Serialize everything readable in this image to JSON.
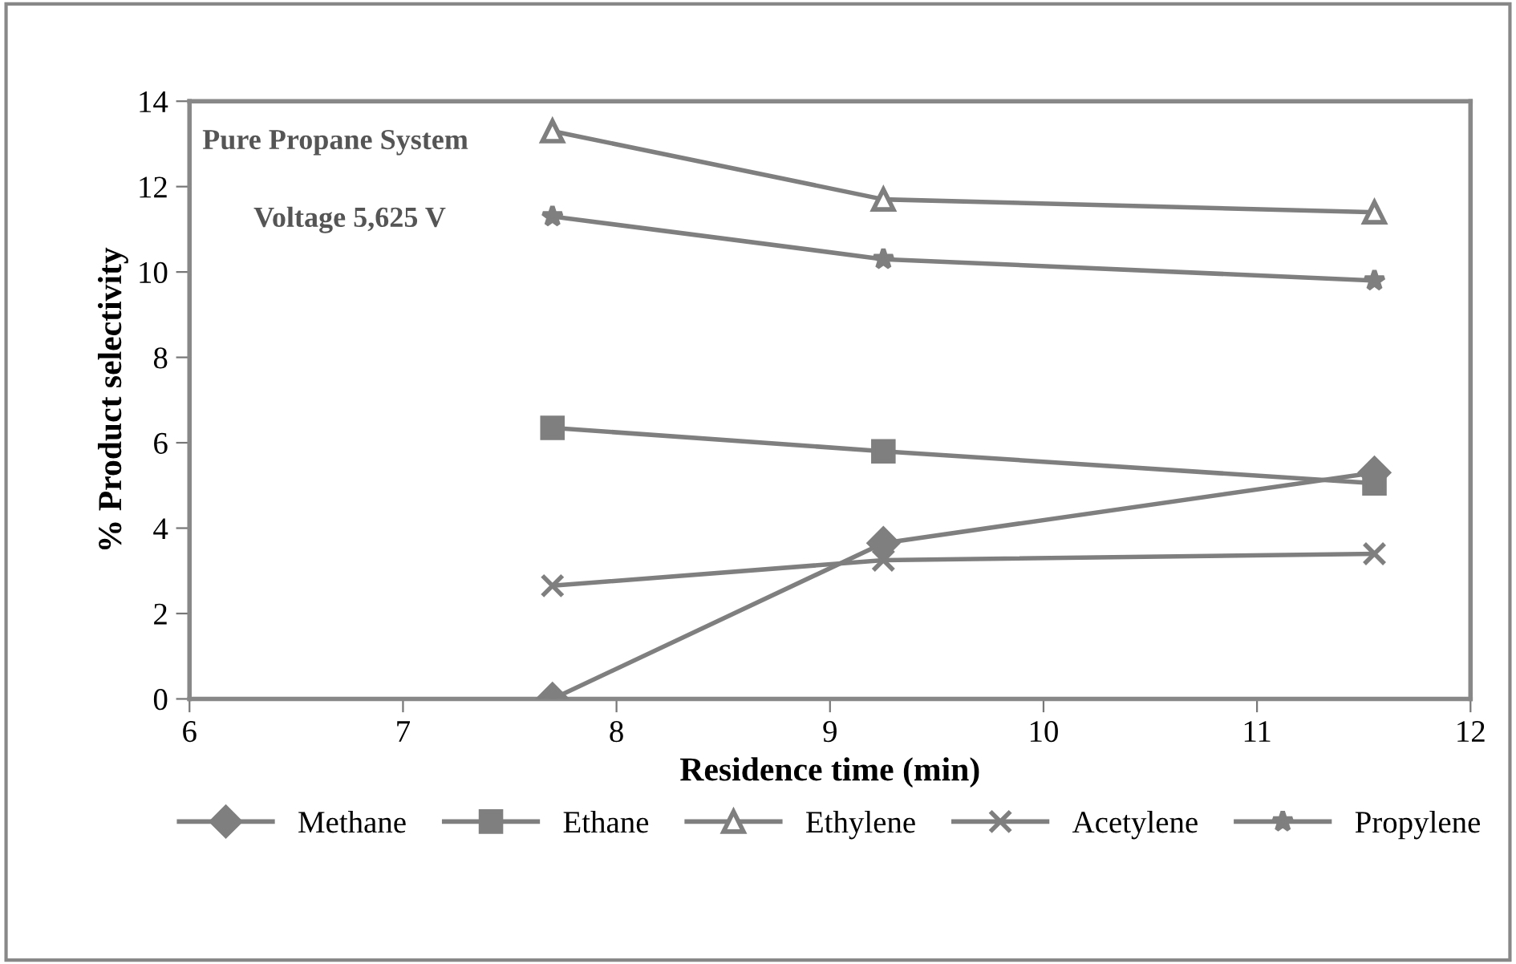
{
  "chart_data": {
    "type": "line",
    "xlabel": "Residence time (min)",
    "ylabel": "% Product selectivity",
    "annotations": [
      "Pure Propane System",
      "Voltage 5,625 V"
    ],
    "x": [
      7.7,
      9.25,
      11.55
    ],
    "series": [
      {
        "name": "Methane",
        "color": "#7f7f7f",
        "marker": "diamond",
        "values": [
          0,
          3.65,
          5.3
        ]
      },
      {
        "name": "Ethane",
        "color": "#7f7f7f",
        "marker": "square",
        "values": [
          6.35,
          5.8,
          5.05
        ]
      },
      {
        "name": "Ethylene",
        "color": "#7f7f7f",
        "marker": "triangle",
        "values": [
          13.3,
          11.7,
          11.4
        ]
      },
      {
        "name": "Acetylene",
        "color": "#7f7f7f",
        "marker": "cross",
        "values": [
          2.65,
          3.25,
          3.4
        ]
      },
      {
        "name": "Propylene",
        "color": "#7f7f7f",
        "marker": "star",
        "values": [
          11.3,
          10.3,
          9.8
        ]
      }
    ],
    "xlim": [
      6,
      12
    ],
    "xticks": [
      6,
      7,
      8,
      9,
      10,
      11,
      12
    ],
    "ylim": [
      0,
      14
    ],
    "yticks": [
      0,
      2,
      4,
      6,
      8,
      10,
      12,
      14
    ],
    "grid": false,
    "legend": "bottom",
    "line_style": "solid"
  }
}
